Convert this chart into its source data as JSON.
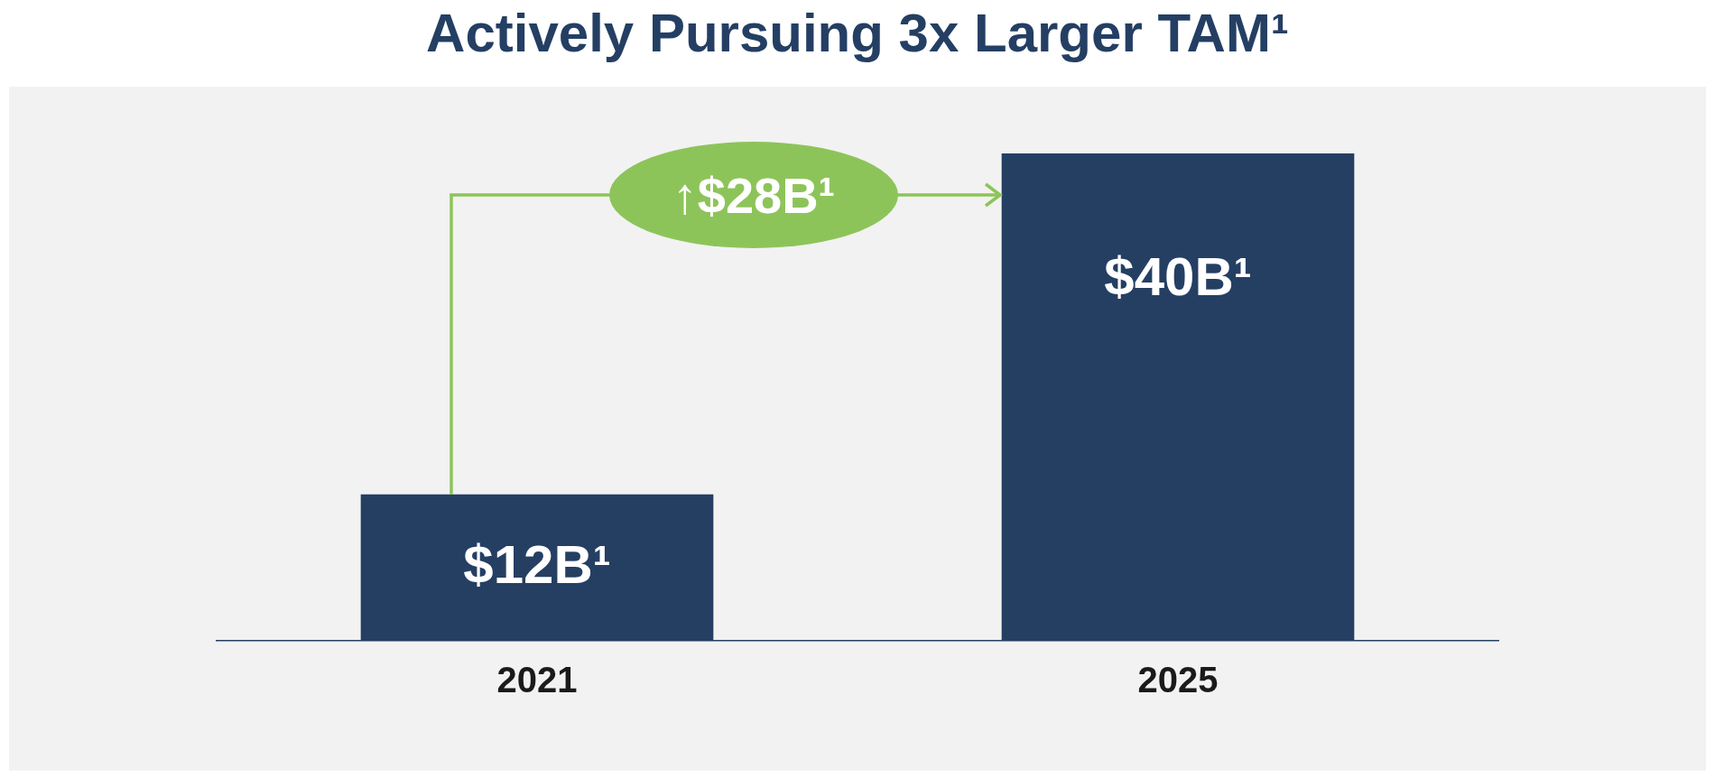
{
  "chart_data": {
    "type": "bar",
    "title": "Actively Pursuing 3x Larger TAM¹",
    "categories": [
      "2021",
      "2025"
    ],
    "values": [
      12,
      40
    ],
    "color": "#253f63",
    "value_labels": [
      "$12B¹",
      "$40B¹"
    ],
    "annotations": [
      "↑$28B¹"
    ]
  }
}
